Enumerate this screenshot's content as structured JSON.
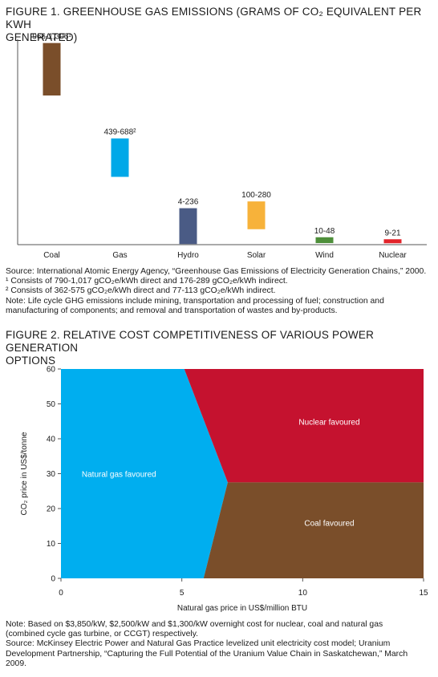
{
  "figure1": {
    "title_line1": "FIGURE 1. GREENHOUSE GAS EMISSIONS (GRAMS OF CO₂ EQUIVALENT PER KWH",
    "title_line2": "GENERATED)",
    "notes": [
      "Source: International Atomic Energy Agency, “Greenhouse Gas Emissions of Electricity Generation Chains,” 2000.",
      "¹ Consists of 790-1,017 gCO₂e/kWh direct and 176-289 gCO₂e/kWh indirect.",
      "² Consists of 362-575 gCO₂e/kWh direct and 77-113 gCO₂e/kWh indirect.",
      "Note: Life cycle GHG emissions include mining, transportation and processing of fuel; construction and manufacturing of components; and removal and transportation of wastes and by-products."
    ]
  },
  "figure2": {
    "title_line1": "FIGURE 2. RELATIVE COST COMPETITIVENESS OF VARIOUS POWER GENERATION",
    "title_line2": "OPTIONS",
    "notes": [
      "Note: Based on $3,850/kW, $2,500/kW and $1,300/kW overnight cost for nuclear, coal and natural gas (combined cycle gas turbine, or CCGT) respectively.",
      "Source: McKinsey Electric Power and Natural Gas Practice levelized unit electricity cost model; Uranium Development Partnership, “Capturing the Full Potential of the Uranium Value Chain in Saskatchewan,” March 2009."
    ]
  },
  "chart_data": [
    {
      "type": "bar",
      "subtype": "floating-range",
      "title": "FIGURE 1. GREENHOUSE GAS EMISSIONS (GRAMS OF CO₂ EQUIVALENT PER KWH GENERATED)",
      "categories": [
        "Coal",
        "Gas",
        "Hydro",
        "Solar",
        "Wind",
        "Nuclear"
      ],
      "ranges": [
        [
          966,
          1306
        ],
        [
          439,
          688
        ],
        [
          4,
          236
        ],
        [
          100,
          280
        ],
        [
          10,
          48
        ],
        [
          9,
          21
        ]
      ],
      "labels": [
        "966-1,306¹",
        "439-688²",
        "4-236",
        "100-280",
        "10-48",
        "9-21"
      ],
      "colors": [
        "#7a4e2a",
        "#00a8e8",
        "#4a5b85",
        "#f7b23a",
        "#4e8f3a",
        "#e2232a"
      ],
      "ylim": [
        0,
        1330
      ],
      "xlabel": "",
      "ylabel": "",
      "grid": false
    },
    {
      "type": "area",
      "subtype": "region-map",
      "title": "FIGURE 2. RELATIVE COST COMPETITIVENESS OF VARIOUS POWER GENERATION OPTIONS",
      "xlabel": "Natural gas price in US$/million BTU",
      "ylabel": "CO₂ price in US$/tonne",
      "xlim": [
        0,
        15
      ],
      "ylim": [
        0,
        60
      ],
      "xticks": [
        0,
        5,
        10,
        15
      ],
      "yticks": [
        0,
        10,
        20,
        30,
        40,
        50,
        60
      ],
      "regions": [
        {
          "name": "Natural gas favoured",
          "color": "#00aeef",
          "polygon": [
            [
              0,
              0
            ],
            [
              5.9,
              0
            ],
            [
              6.9,
              27.5
            ],
            [
              5.1,
              60
            ],
            [
              0,
              60
            ]
          ],
          "label_at": [
            2.4,
            30
          ]
        },
        {
          "name": "Nuclear favoured",
          "color": "#c5122f",
          "polygon": [
            [
              5.1,
              60
            ],
            [
              15,
              60
            ],
            [
              15,
              27.5
            ],
            [
              6.9,
              27.5
            ]
          ],
          "label_at": [
            11.1,
            45
          ]
        },
        {
          "name": "Coal favoured",
          "color": "#7a4e2a",
          "polygon": [
            [
              5.9,
              0
            ],
            [
              15,
              0
            ],
            [
              15,
              27.5
            ],
            [
              6.9,
              27.5
            ]
          ],
          "label_at": [
            11.1,
            16
          ]
        }
      ]
    }
  ]
}
